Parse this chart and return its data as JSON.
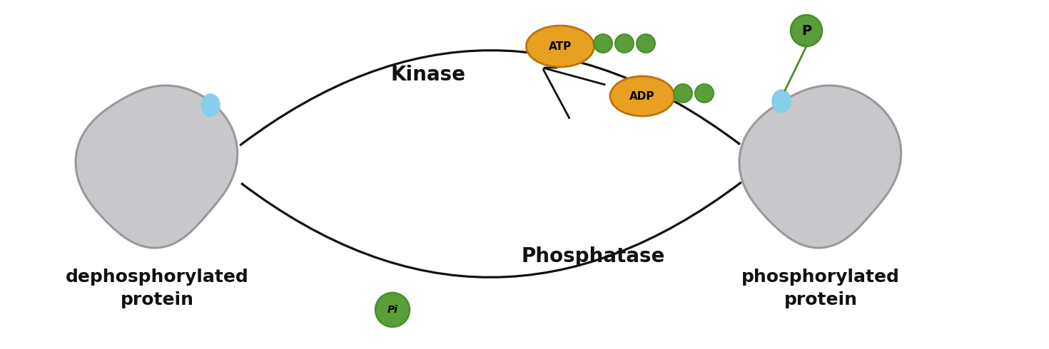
{
  "bg_color": "#ffffff",
  "protein_fill": "#c8c8cc",
  "protein_edge": "#999999",
  "blue_dot": "#87ceeb",
  "green_color": "#4a8c2a",
  "green_fill": "#5a9e3a",
  "atp_adp_fill": "#e8a020",
  "atp_adp_edge": "#c07010",
  "arrow_color": "#111111",
  "text_color": "#111111",
  "kinase_label": "Kinase",
  "phosphatase_label": "Phosphatase",
  "left_label_line1": "dephosphorylated",
  "left_label_line2": "protein",
  "right_label_line1": "phosphorylated",
  "right_label_line2": "protein",
  "atp_label": "ATP",
  "adp_label": "ADP",
  "pi_label": "Pi"
}
